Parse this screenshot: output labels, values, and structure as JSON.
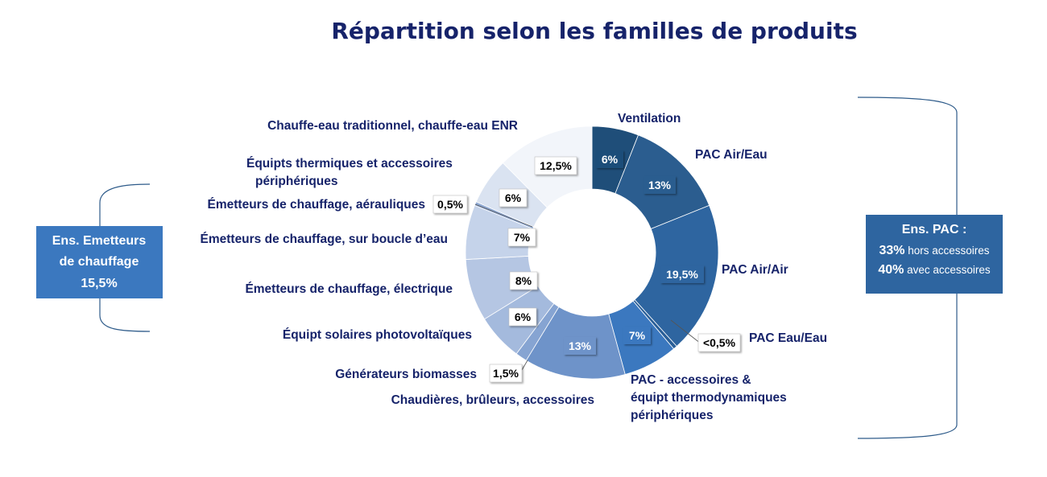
{
  "chart_data": {
    "type": "donut",
    "title": "Répartition selon les familles de produits",
    "unit": "%",
    "slices": [
      {
        "label": "Ventilation",
        "value": 6,
        "value_label": "6%",
        "color": "#1f4e79"
      },
      {
        "label": "PAC Air/Eau",
        "value": 13,
        "value_label": "13%",
        "color": "#2b5d8f"
      },
      {
        "label": "PAC Air/Air",
        "value": 19.5,
        "value_label": "19,5%",
        "color": "#2e65a0"
      },
      {
        "label": "PAC Eau/Eau",
        "value": 0.5,
        "value_label": "<0,5%",
        "color": "#2a5f98"
      },
      {
        "label": "PAC - accessoires & équipt thermodynamiques périphériques",
        "value": 7,
        "value_label": "7%",
        "color": "#3b78bf"
      },
      {
        "label": "Chaudières, brûleurs, accessoires",
        "value": 13,
        "value_label": "13%",
        "color": "#6e93c9"
      },
      {
        "label": "Générateurs biomasses",
        "value": 1.5,
        "value_label": "1,5%",
        "color": "#86a4d2"
      },
      {
        "label": "Équipt solaires photovoltaïques",
        "value": 6,
        "value_label": "6%",
        "color": "#a4badd"
      },
      {
        "label": "Émetteurs de chauffage, électrique",
        "value": 8,
        "value_label": "8%",
        "color": "#b5c6e3"
      },
      {
        "label": "Émetteurs de chauffage, sur boucle d’eau",
        "value": 7,
        "value_label": "7%",
        "color": "#c5d3ea"
      },
      {
        "label": "Émetteurs de chauffage, aérauliques",
        "value": 0.5,
        "value_label": "0,5%",
        "color": "#8fa9d4"
      },
      {
        "label": "Équipts thermiques et accessoires périphériques",
        "value": 6,
        "value_label": "6%",
        "color": "#dae3f1"
      },
      {
        "label": "Chauffe-eau traditionnel, chauffe-eau ENR",
        "value": 12.5,
        "value_label": "12,5%",
        "color": "#f2f5fa"
      }
    ]
  },
  "left_box": {
    "line1": "Ens. Emetteurs",
    "line2": "de chauffage",
    "line3": "15,5%",
    "color": "#3b78bf"
  },
  "right_box": {
    "title": "Ens. PAC :",
    "line1_value": "33%",
    "line1_text": " hors accessoires",
    "line2_value": "40%",
    "line2_text": " avec accessoires",
    "color": "#2e65a0"
  }
}
